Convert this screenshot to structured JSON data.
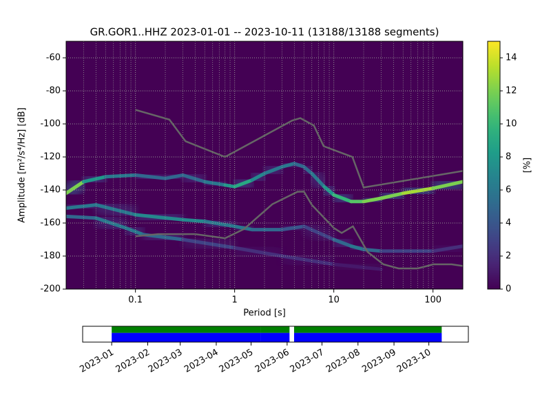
{
  "chart_data": {
    "type": "ppsd",
    "title": "GR.GOR1..HHZ   2023-01-01 -- 2023-10-11  (13188/13188 segments)",
    "xlabel": "Period [s]",
    "ylabel": "Amplitude [m²/s⁴/Hz] [dB]",
    "xscale": "log",
    "xlim": [
      0.02,
      200
    ],
    "xticks": [
      0.1,
      1,
      10,
      100
    ],
    "ylim": [
      -200,
      -50
    ],
    "yticks": [
      -200,
      -180,
      -160,
      -140,
      -120,
      -100,
      -80,
      -60
    ],
    "grid": true,
    "colormap": "viridis",
    "background": "#440154",
    "clim": [
      0,
      15
    ],
    "cticks": [
      0,
      2,
      4,
      6,
      8,
      10,
      12,
      14
    ],
    "clabel": "[%]",
    "ridges": [
      {
        "x": [
          0.02,
          0.03,
          0.05,
          0.1,
          0.2,
          0.3,
          0.5,
          0.8,
          1,
          1.5,
          2,
          3,
          4,
          5,
          6,
          8,
          10,
          15,
          20,
          30,
          50,
          100,
          200
        ],
        "y": [
          -142,
          -135,
          -132,
          -131,
          -133,
          -131,
          -135,
          -137,
          -138,
          -134,
          -130,
          -126,
          -124,
          -126,
          -130,
          -138,
          -143,
          -147,
          -147,
          -145,
          -142,
          -139,
          -135
        ],
        "values": [
          12,
          8,
          6,
          5,
          5,
          5,
          6,
          8,
          9,
          7,
          6,
          6,
          5,
          5,
          6,
          8,
          10,
          11,
          12,
          12,
          13,
          12,
          11
        ]
      },
      {
        "x": [
          0.02,
          0.04,
          0.1,
          0.3,
          0.5,
          1,
          1.5,
          3,
          5,
          10,
          15,
          20,
          30,
          100,
          200
        ],
        "y": [
          -151,
          -149,
          -155,
          -158,
          -159,
          -162,
          -164,
          -164,
          -162,
          -170,
          -174,
          -176,
          -177,
          -177,
          -174
        ],
        "values": [
          6,
          6,
          7,
          7,
          6,
          6,
          5,
          4,
          3,
          5,
          6,
          5,
          3,
          2,
          2
        ]
      },
      {
        "x": [
          0.02,
          0.04,
          0.08,
          0.12,
          0.3,
          1,
          3,
          10,
          30
        ],
        "y": [
          -156,
          -157,
          -163,
          -167,
          -170,
          -175,
          -180,
          -185,
          -188
        ],
        "values": [
          5,
          6,
          6,
          5,
          3,
          2,
          2,
          1,
          1
        ]
      }
    ],
    "lines": [
      {
        "color": "#666666",
        "x": [
          0.1,
          0.22,
          0.32,
          0.8,
          3.8,
          4.6,
          6.3,
          7.9,
          15.4,
          20,
          200
        ],
        "y": [
          -91.5,
          -97.4,
          -110.5,
          -120,
          -98,
          -96.5,
          -101,
          -113.5,
          -120,
          -138.5,
          -128.5
        ]
      },
      {
        "color": "#666666",
        "x": [
          0.1,
          0.17,
          0.4,
          0.8,
          1.24,
          2.4,
          4.3,
          5,
          6,
          10,
          12,
          15.6,
          21.9,
          31.6,
          45,
          70,
          101,
          154,
          200
        ],
        "y": [
          -168,
          -166.7,
          -166.7,
          -169.2,
          -163.7,
          -148.6,
          -141.1,
          -141,
          -149,
          -163,
          -166,
          -162,
          -177.5,
          -185,
          -187.5,
          -187.5,
          -185,
          -185,
          -186
        ]
      }
    ],
    "availability": {
      "xlim": [
        "2022-12-07",
        "2023-11-04"
      ],
      "xticks": [
        "2023-01",
        "2023-02",
        "2023-03",
        "2023-04",
        "2023-05",
        "2023-06",
        "2023-07",
        "2023-08",
        "2023-09",
        "2023-10"
      ],
      "coverage": [
        {
          "start": "2023-01-01",
          "end": "2023-05-08"
        },
        {
          "start": "2023-05-09",
          "end": "2023-06-02"
        },
        {
          "start": "2023-06-07",
          "end": "2023-10-11"
        }
      ],
      "colors": [
        "#008000",
        "#0000ff"
      ]
    }
  }
}
